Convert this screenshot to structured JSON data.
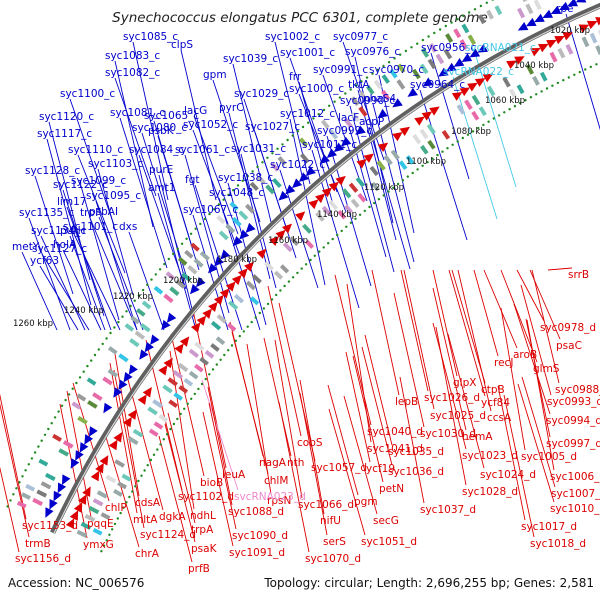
{
  "title": "Synechococcus elongatus PCC 6301, complete genome",
  "footer": {
    "accession": "Accession: NC_006576",
    "topology": "Topology: circular; Length: 2,696,255 bp; Genes: 2,581"
  },
  "colors": {
    "forward": "#0000cc",
    "reverse": "#dd0000",
    "rna_forward": "#44c8e8",
    "rna_reverse": "#ee88cc",
    "axis": "#555555",
    "tick": "#1d8a1d"
  },
  "kbp_ticks": [
    "1020 kbp",
    "1040 kbp",
    "1060 kbp",
    "1080 kbp",
    "1100 kbp",
    "1120 kbp",
    "1140 kbp",
    "1160 kbp",
    "1180 kbp",
    "1200 kbp",
    "1220 kbp",
    "1240 kbp",
    "1260 kbp"
  ],
  "forward_labels": [
    "rpe",
    "syc0956_c",
    "svcRNA021_c",
    "svcRNA022_c",
    "syc0964_c",
    "syc0970_c",
    "syc0976_c",
    "syc0977_c",
    "syc0991_c",
    "syc1001_c",
    "syc1002_c",
    "tktA",
    "nhaS4",
    "syc0990_c",
    "syc1000_c",
    "frr",
    "lacF",
    "acpP",
    "syc0999_c",
    "syc1011_c",
    "syc1012_c",
    "syc1022_c",
    "syc1027_c",
    "syc1029_c",
    "gpm",
    "clpS",
    "syc1039_c",
    "pyrC",
    "lacG",
    "syc1052_c",
    "syc1031_c",
    "syc1038_c",
    "syc1048_c",
    "syc1061_c",
    "fgt",
    "syc1067_c",
    "syc1065_c",
    "psbK",
    "syc1080_c",
    "syc1081_c",
    "syc1085_c",
    "syc1083_c",
    "syc1082_c",
    "syc1100_c",
    "syc1084_c",
    "purE",
    "amt1",
    "syc1120_c",
    "syc1117_c",
    "syc1110_c",
    "syc1103_c",
    "syc1099_c",
    "syc1095_c",
    "psbAI",
    "syc1101_c",
    "dxs",
    "syc1128_c",
    "syc1122_c",
    "lim17",
    "trpF",
    "purH",
    "holA",
    "syc1135_c",
    "syc1134_c",
    "syc1127_c",
    "metY",
    "ycf63"
  ],
  "reverse_labels": [
    "srrB",
    "syc0978_d",
    "psaC",
    "aroB",
    "glmS",
    "recJ",
    "syc0988_d",
    "syc0993_d",
    "ctpB",
    "ycf84",
    "glpX",
    "syc1026_d",
    "syc1025_d",
    "ccsA",
    "syc0994_d",
    "syc0997_d",
    "lepB",
    "syc1030_d",
    "hemA",
    "syc1040_d",
    "syc1041_d",
    "syc1035_d",
    "syc1036_d",
    "syc1023_d",
    "syc1024_d",
    "syc1005_d",
    "syc1006_d",
    "syc1028_d",
    "syc1007_d",
    "syc1010_d",
    "syc1037_d",
    "syc1017_d",
    "syc1018_d",
    "cobS",
    "syc1057_d",
    "ycf19",
    "nth",
    "petN",
    "nagA",
    "chlM",
    "rpsN",
    "syc1066_d",
    "pgm",
    "secG",
    "syc1051_d",
    "nifU",
    "serS",
    "syc1070_d",
    "leuA",
    "svcRNA023_d",
    "syc1088_d",
    "syc1090_d",
    "syc1091_d",
    "bioB",
    "syc1102_d",
    "ndhL",
    "trpA",
    "psaK",
    "prfB",
    "dgkA",
    "cdsA",
    "mltA",
    "syc1124_d",
    "chrA",
    "chlP",
    "pqqE",
    "ymxG",
    "syc1153_d",
    "trmB",
    "syc1156_d"
  ]
}
